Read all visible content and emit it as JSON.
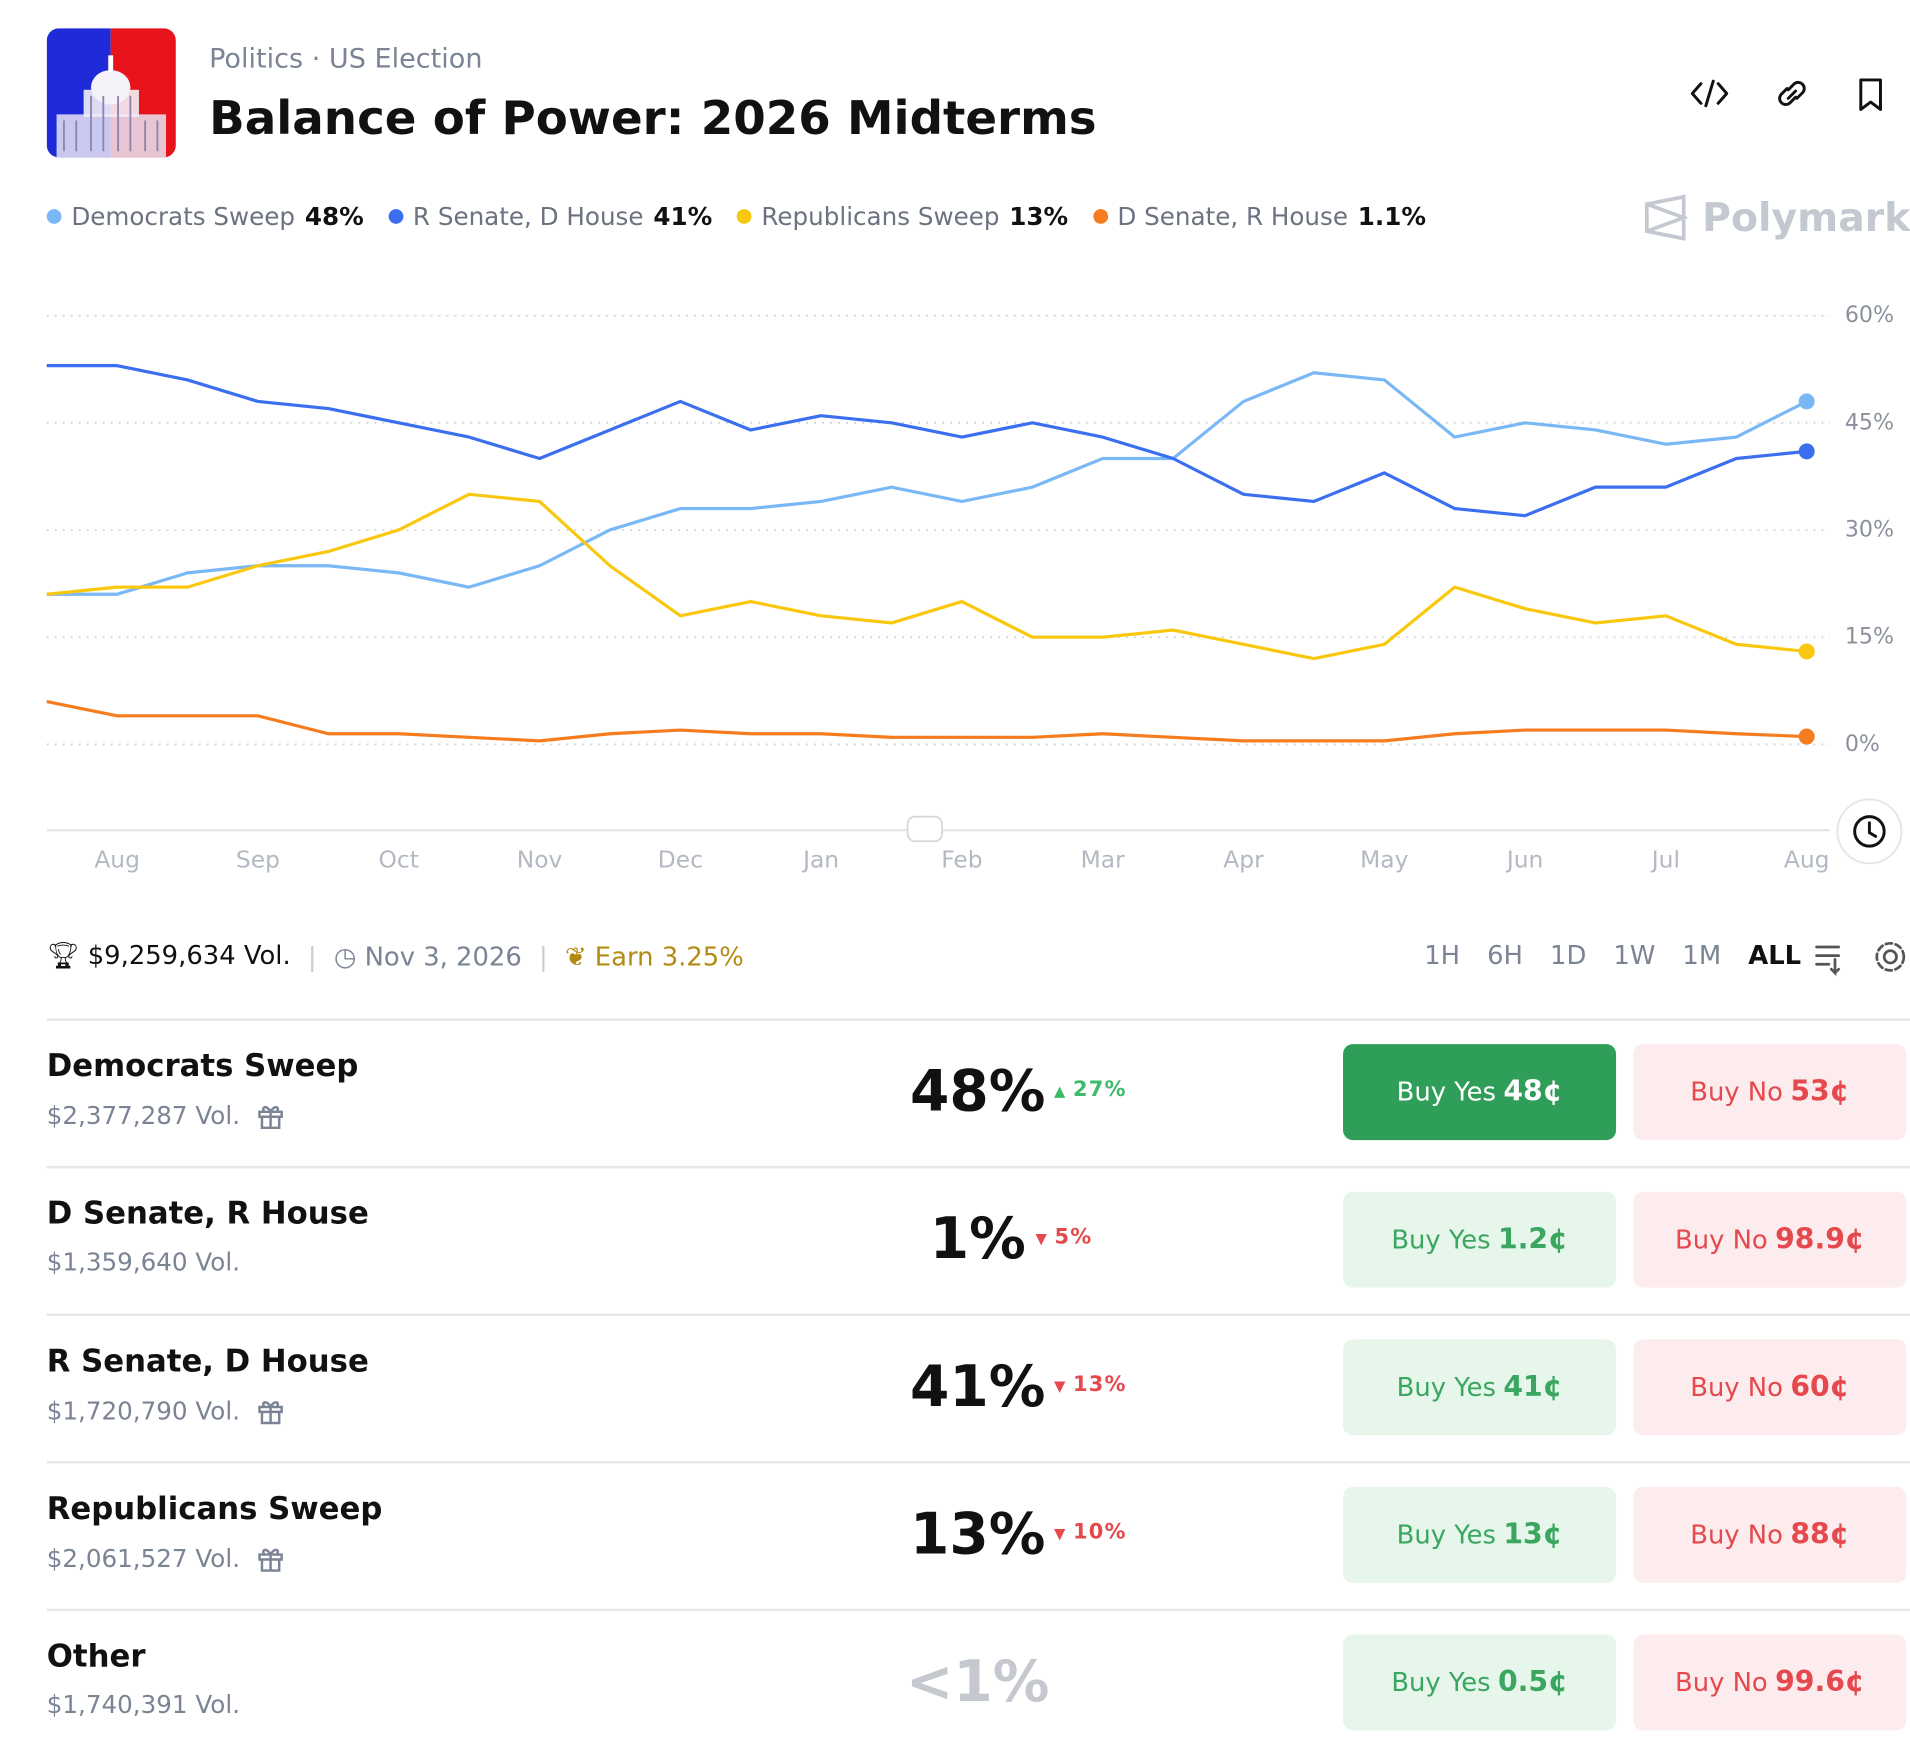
{
  "header": {
    "breadcrumb": [
      "Politics",
      "US Election"
    ],
    "title": "Balance of Power: 2026 Midterms",
    "brand": "Polymarket"
  },
  "chart_data": {
    "type": "line",
    "categories": [
      null,
      "Aug",
      null,
      "Sep",
      null,
      "Oct",
      null,
      "Nov",
      null,
      "Dec",
      null,
      "Jan",
      null,
      "Feb",
      null,
      "Mar",
      null,
      "Apr",
      null,
      "May",
      null,
      "Jun",
      null,
      "Jul",
      null,
      "Aug"
    ],
    "series": [
      {
        "name": "Democrats Sweep",
        "value_label": "48%",
        "color": "#7ab8f5",
        "values": [
          21,
          21,
          24,
          25,
          25,
          24,
          22,
          25,
          30,
          33,
          33,
          34,
          36,
          34,
          36,
          40,
          40,
          48,
          52,
          51,
          43,
          45,
          44,
          42,
          43,
          48
        ]
      },
      {
        "name": "R Senate, D House",
        "value_label": "41%",
        "color": "#3b6ff0",
        "values": [
          53,
          53,
          51,
          48,
          47,
          45,
          43,
          40,
          44,
          48,
          44,
          46,
          45,
          43,
          45,
          43,
          40,
          35,
          34,
          38,
          33,
          32,
          36,
          36,
          40,
          41
        ]
      },
      {
        "name": "Republicans Sweep",
        "value_label": "13%",
        "color": "#f9c80e",
        "values": [
          21,
          22,
          22,
          25,
          27,
          30,
          35,
          34,
          25,
          18,
          20,
          18,
          17,
          20,
          15,
          15,
          16,
          14,
          12,
          14,
          22,
          19,
          17,
          18,
          14,
          13
        ]
      },
      {
        "name": "D Senate, R House",
        "value_label": "1.1%",
        "color": "#f57c1f",
        "values": [
          6,
          4,
          4,
          4,
          1.5,
          1.5,
          1,
          0.5,
          1.5,
          2,
          1.5,
          1.5,
          1,
          1,
          1,
          1.5,
          1,
          0.5,
          0.5,
          0.5,
          1.5,
          2,
          2,
          2,
          1.5,
          1.1
        ]
      }
    ],
    "ylim": [
      -12,
      62
    ],
    "yticks": [
      {
        "value": 0,
        "label": "0%"
      },
      {
        "value": 15,
        "label": "15%"
      },
      {
        "value": 30,
        "label": "30%"
      },
      {
        "value": 45,
        "label": "45%"
      },
      {
        "value": 60,
        "label": "60%"
      }
    ],
    "grid": true
  },
  "stats": {
    "volume": "$9,259,634 Vol.",
    "end_date": "Nov 3, 2026",
    "earn": "Earn 3.25%"
  },
  "ranges": {
    "options": [
      "1H",
      "6H",
      "1D",
      "1W",
      "1M",
      "ALL"
    ],
    "active": 5
  },
  "buttons": {
    "yes": "Buy Yes",
    "no": "Buy No"
  },
  "rows": [
    {
      "name": "Democrats Sweep",
      "volume": "$2,377,287 Vol.",
      "gift": true,
      "chance": "48%",
      "change": "27%",
      "direction": "up",
      "yes": "48¢",
      "no": "53¢",
      "selected": true
    },
    {
      "name": "D Senate, R House",
      "volume": "$1,359,640 Vol.",
      "gift": false,
      "chance": "1%",
      "change": "5%",
      "direction": "down",
      "yes": "1.2¢",
      "no": "98.9¢",
      "selected": false
    },
    {
      "name": "R Senate, D House",
      "volume": "$1,720,790 Vol.",
      "gift": true,
      "chance": "41%",
      "change": "13%",
      "direction": "down",
      "yes": "41¢",
      "no": "60¢",
      "selected": false
    },
    {
      "name": "Republicans Sweep",
      "volume": "$2,061,527 Vol.",
      "gift": true,
      "chance": "13%",
      "change": "10%",
      "direction": "down",
      "yes": "13¢",
      "no": "88¢",
      "selected": false
    },
    {
      "name": "Other",
      "volume": "$1,740,391 Vol.",
      "gift": false,
      "chance": "<1%",
      "dimmed": true,
      "yes": "0.5¢",
      "no": "99.6¢",
      "selected": false
    }
  ]
}
